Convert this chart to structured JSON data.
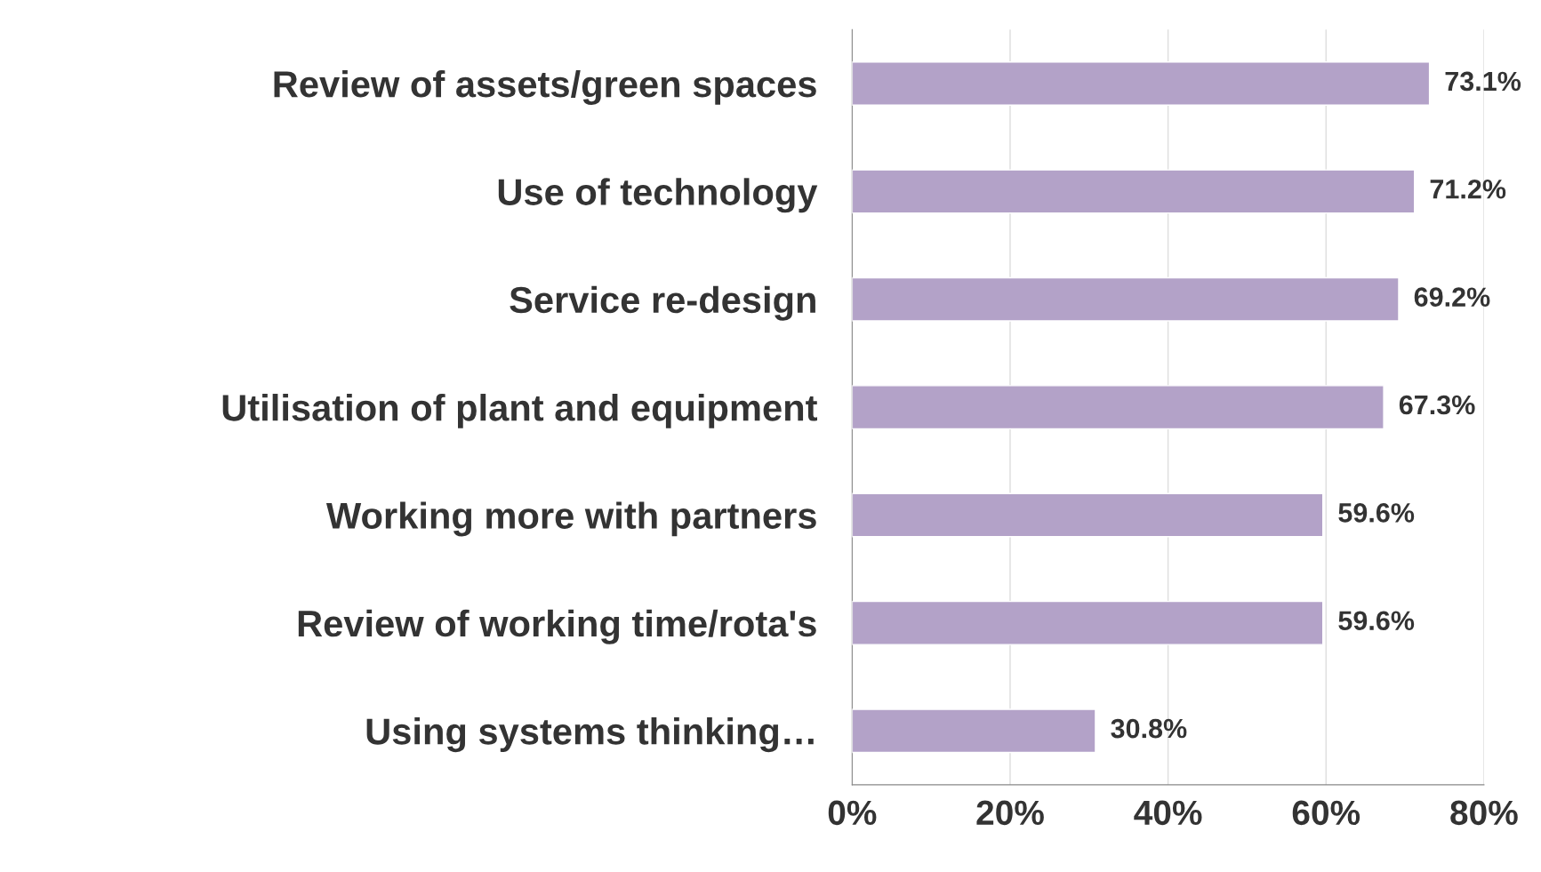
{
  "chart_data": {
    "type": "bar",
    "orientation": "horizontal",
    "categories": [
      "Review of assets/green spaces",
      "Use of technology",
      "Service re-design",
      "Utilisation of plant and equipment",
      "Working more with partners",
      "Review of working time/rota's",
      "Using systems thinking…"
    ],
    "values": [
      73.1,
      71.2,
      69.2,
      67.3,
      59.6,
      59.6,
      30.8
    ],
    "value_labels": [
      "73.1%",
      "71.2%",
      "69.2%",
      "67.3%",
      "59.6%",
      "59.6%",
      "30.8%"
    ],
    "color": "#b3a2c8",
    "xlim": [
      0,
      80
    ],
    "xticks": [
      {
        "value": 0,
        "label": "0%"
      },
      {
        "value": 20,
        "label": "20%"
      },
      {
        "value": 40,
        "label": "40%"
      },
      {
        "value": 60,
        "label": "60%"
      },
      {
        "value": 80,
        "label": "80%"
      }
    ],
    "grid": "x",
    "legend": false
  }
}
